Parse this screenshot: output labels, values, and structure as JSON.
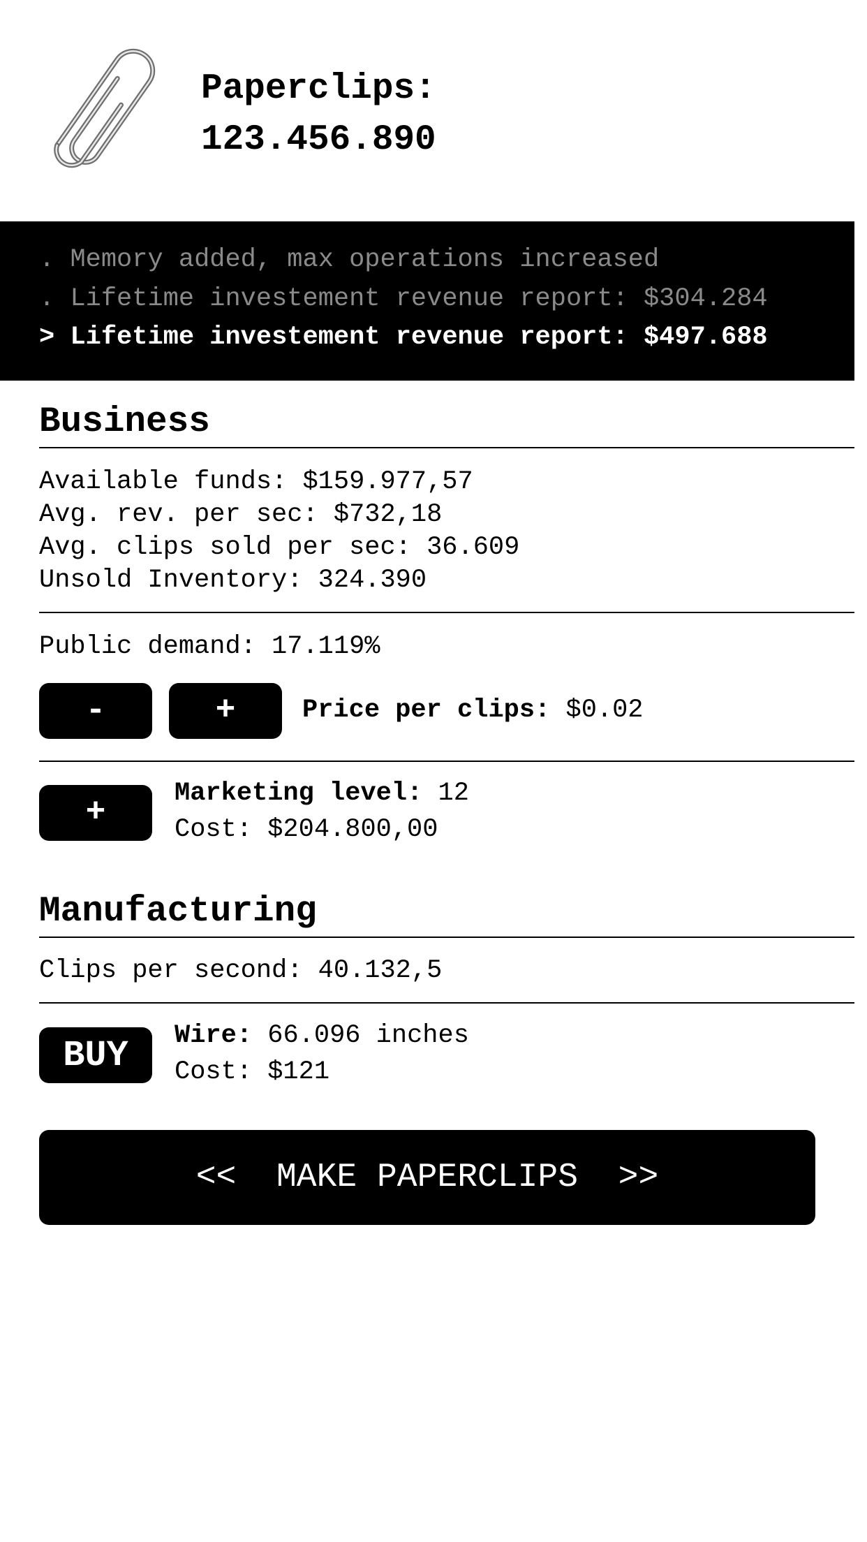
{
  "header": {
    "logo_icon": "paperclip-icon",
    "title_label": "Paperclips:",
    "clip_count": "123.456.890"
  },
  "console": {
    "lines": [
      {
        "prefix": ".",
        "text": "Memory added, max operations increased",
        "state": "old"
      },
      {
        "prefix": ".",
        "text": "Lifetime investement revenue report: $304.284",
        "state": "old"
      },
      {
        "prefix": ">",
        "text": "Lifetime investement revenue report: $497.688",
        "state": "current"
      }
    ]
  },
  "business": {
    "heading": "Business",
    "stats": [
      "Available funds: $159.977,57",
      "Avg. rev. per sec: $732,18",
      "Avg. clips sold per sec: 36.609",
      "Unsold Inventory: 324.390"
    ],
    "public_demand": "Public demand: 17.119%",
    "price_decrease_label": "-",
    "price_increase_label": "+",
    "price_label": "Price per clips:",
    "price_value": "$0.02",
    "marketing_button_label": "+",
    "marketing_label": "Marketing level:",
    "marketing_value": "12",
    "marketing_cost": "Cost: $204.800,00"
  },
  "manufacturing": {
    "heading": "Manufacturing",
    "clips_per_second": "Clips per second: 40.132,5",
    "buy_label": "BUY",
    "wire_label": "Wire:",
    "wire_value": "66.096 inches",
    "wire_cost": "Cost: $121"
  },
  "make_button": {
    "left_arrows": "<<",
    "label": "MAKE PAPERCLIPS",
    "right_arrows": ">>"
  },
  "colors": {
    "background": "#ffffff",
    "console_bg": "#000000",
    "console_old_text": "#8a8a8a",
    "button_bg": "#000000"
  }
}
